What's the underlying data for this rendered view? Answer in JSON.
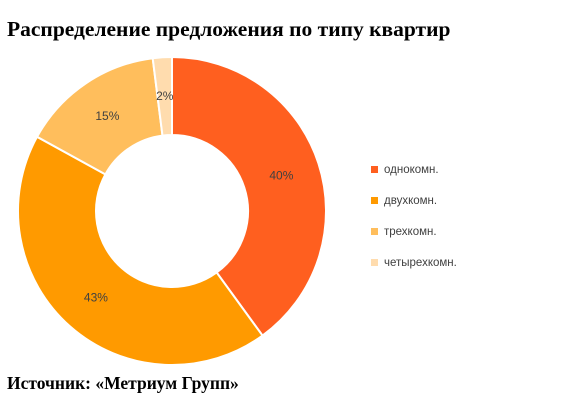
{
  "title": "Распределение предложения по типу квартир",
  "source": "Источник: «Метриум Групп»",
  "chart_data": {
    "type": "pie",
    "donut": true,
    "legend_position": "right",
    "slices": [
      {
        "label": "однокомн.",
        "value": 40,
        "value_label": "40%",
        "color": "#ff5f1f"
      },
      {
        "label": "двухкомн.",
        "value": 43,
        "value_label": "43%",
        "color": "#ff9a00"
      },
      {
        "label": "трехкомн.",
        "value": 15,
        "value_label": "15%",
        "color": "#ffbe5c"
      },
      {
        "label": "четырехкомн.",
        "value": 2,
        "value_label": "2%",
        "color": "#ffdcae"
      }
    ]
  }
}
